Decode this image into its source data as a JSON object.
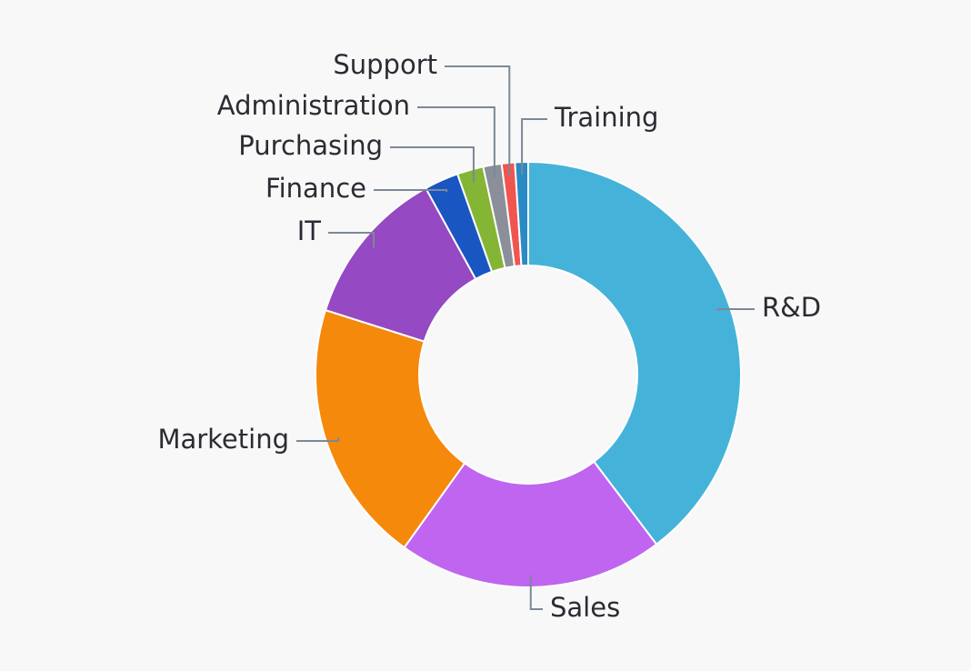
{
  "chart_data": {
    "type": "donut",
    "categories": [
      "R&D",
      "Sales",
      "Marketing",
      "IT",
      "Finance",
      "Purchasing",
      "Administration",
      "Support",
      "Training"
    ],
    "values": [
      39.7,
      20.2,
      20,
      12.1,
      2.6,
      2,
      1.4,
      1,
      1
    ],
    "colors": [
      "#45b3d9",
      "#bf65f0",
      "#f5890c",
      "#9549c2",
      "#1a56c2",
      "#84b535",
      "#8b8f99",
      "#f0554f",
      "#2a8ac4"
    ]
  }
}
